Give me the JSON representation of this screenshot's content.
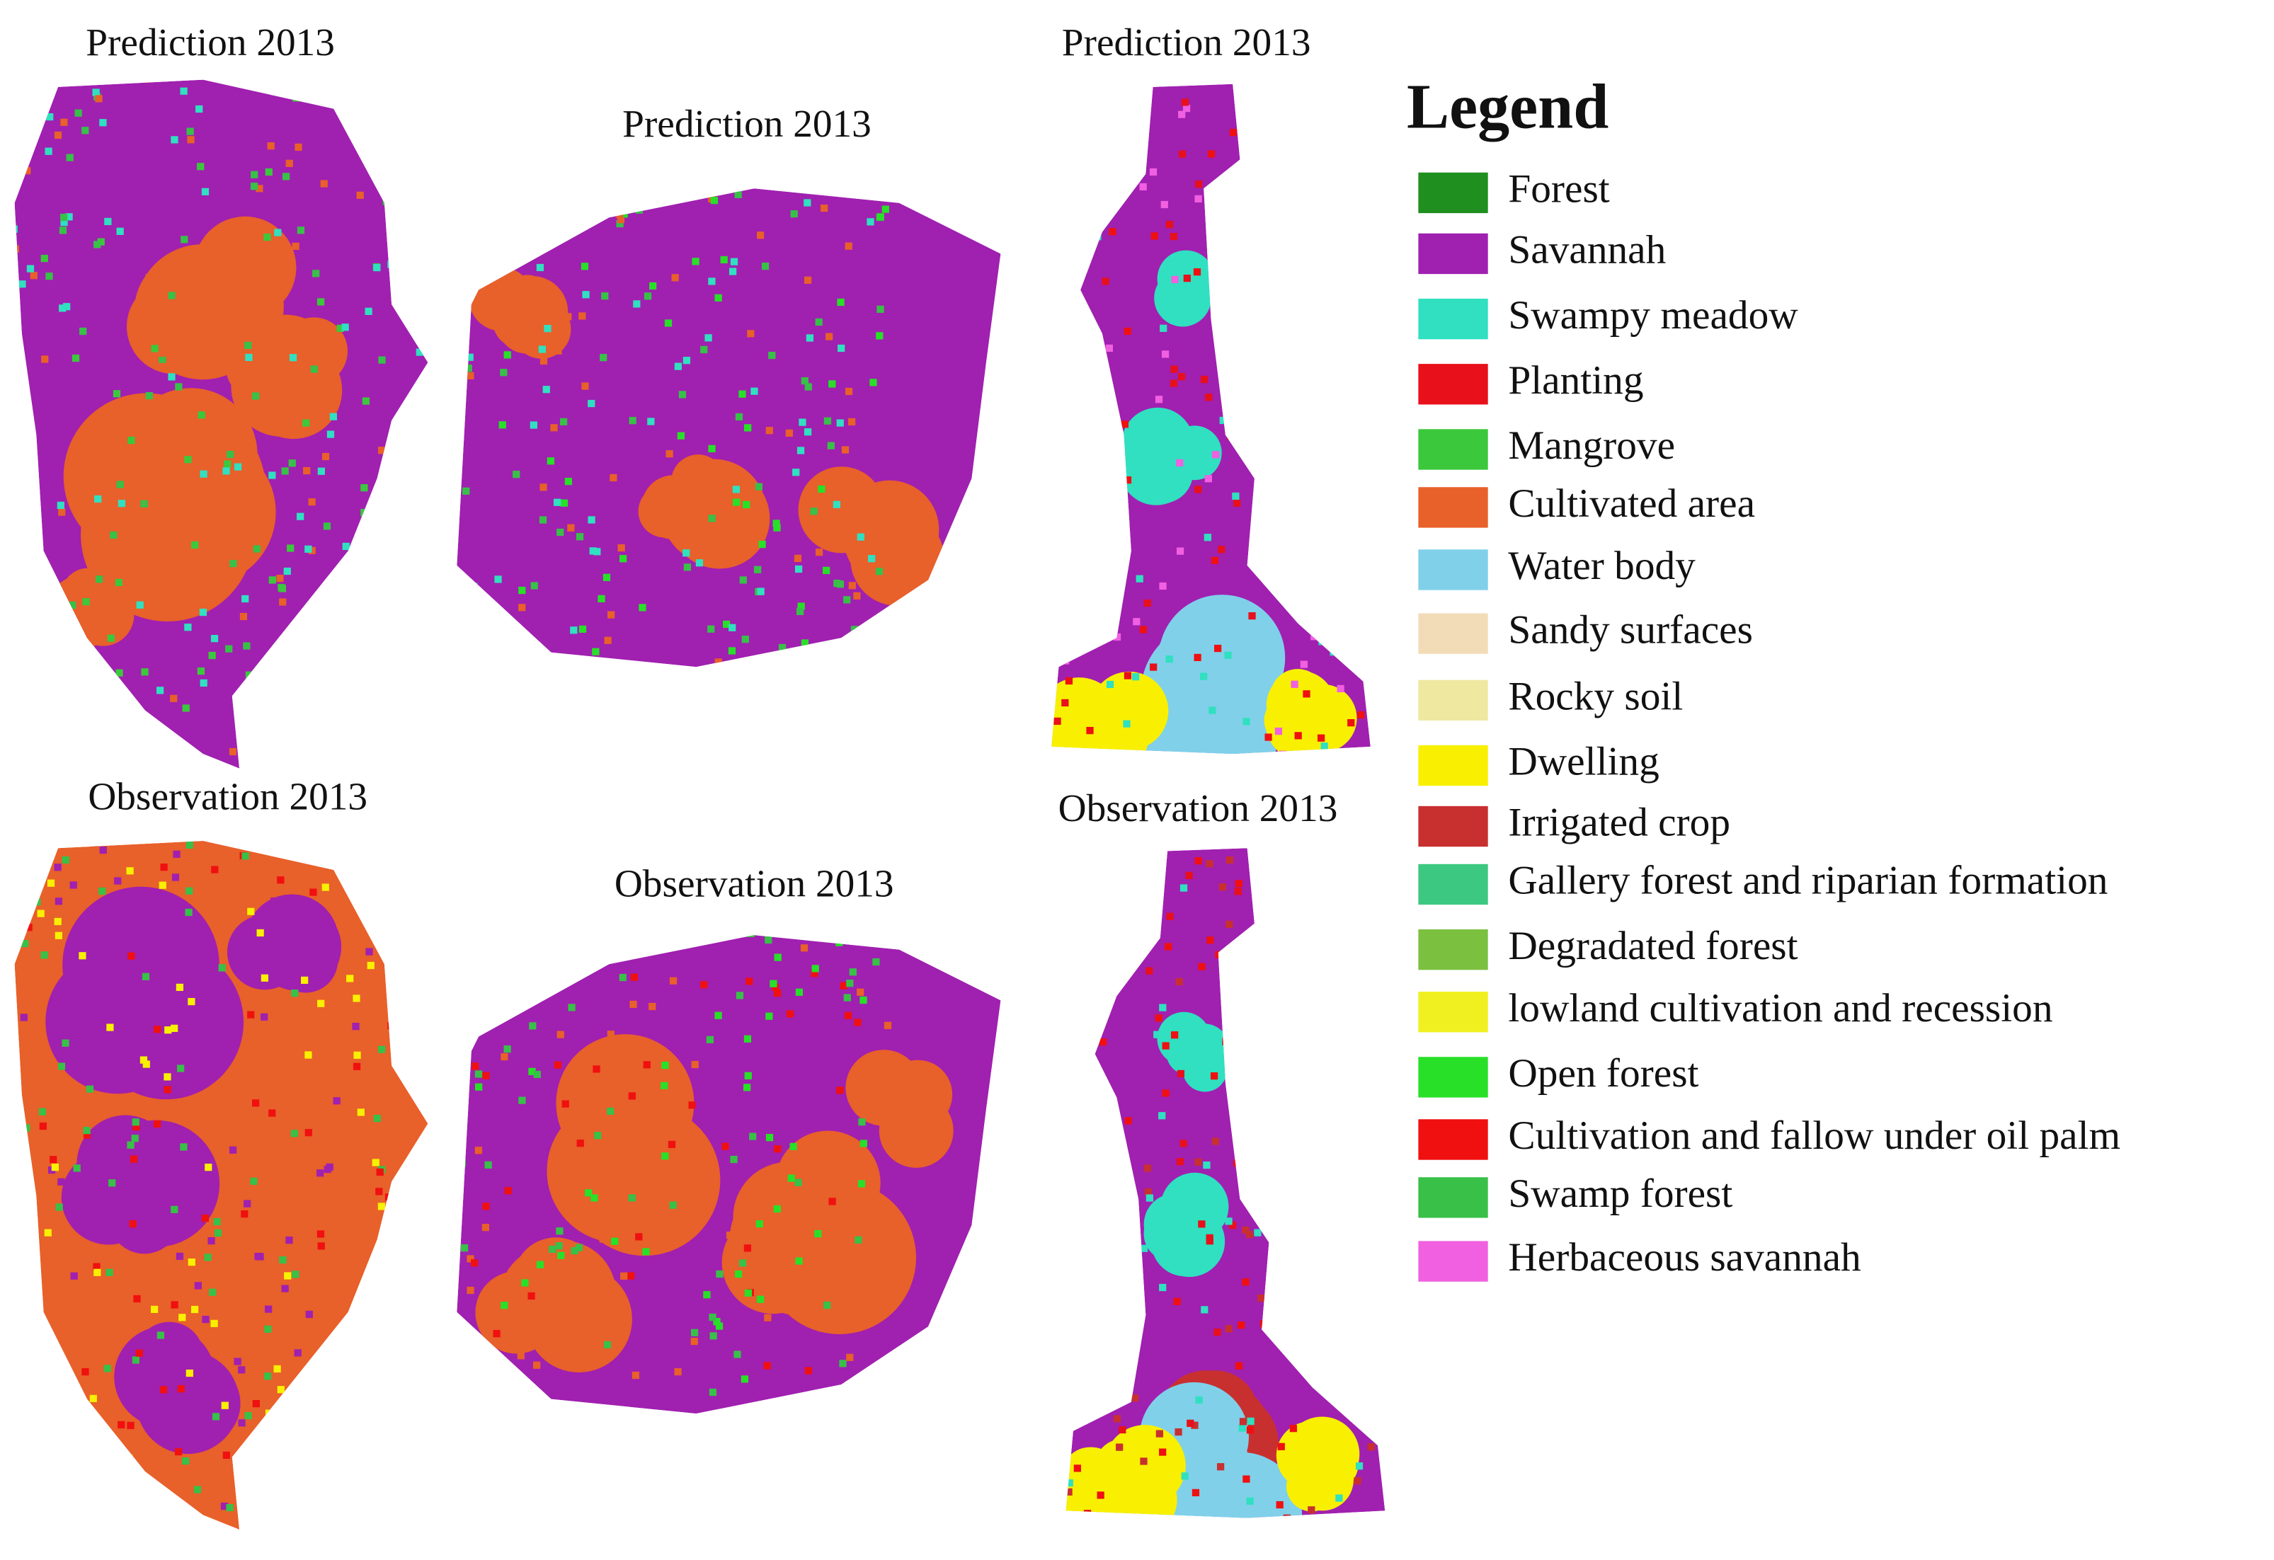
{
  "panels": [
    {
      "title": "Prediction 2013"
    },
    {
      "title": "Prediction 2013"
    },
    {
      "title": "Prediction 2013"
    },
    {
      "title": "Observation 2013"
    },
    {
      "title": "Observation 2013"
    },
    {
      "title": "Observation 2013"
    }
  ],
  "legend": {
    "title": "Legend",
    "items": [
      {
        "label": "Forest",
        "color": "#1f8f1f"
      },
      {
        "label": "Savannah",
        "color": "#a020b0"
      },
      {
        "label": "Swampy meadow",
        "color": "#30e0c0"
      },
      {
        "label": "Planting",
        "color": "#e8101a"
      },
      {
        "label": "Mangrove",
        "color": "#3cc83c"
      },
      {
        "label": "Cultivated area",
        "color": "#e8602a"
      },
      {
        "label": "Water body",
        "color": "#80d0ea"
      },
      {
        "label": "Sandy surfaces",
        "color": "#f2dcb8"
      },
      {
        "label": "Rocky soil",
        "color": "#eee8a0"
      },
      {
        "label": "Dwelling",
        "color": "#f8f000"
      },
      {
        "label": "Irrigated crop",
        "color": "#c83030"
      },
      {
        "label": "Gallery forest and riparian formation",
        "color": "#3cc880"
      },
      {
        "label": "Degradated forest",
        "color": "#7cc040"
      },
      {
        "label": "lowland cultivation and recession",
        "color": "#f0f020"
      },
      {
        "label": "Open forest",
        "color": "#28e028"
      },
      {
        "label": "Cultivation and fallow under oil palm",
        "color": "#f01010"
      },
      {
        "label": "Swamp forest",
        "color": "#38c048"
      },
      {
        "label": "Herbaceous savannah",
        "color": "#f060e0"
      }
    ]
  }
}
